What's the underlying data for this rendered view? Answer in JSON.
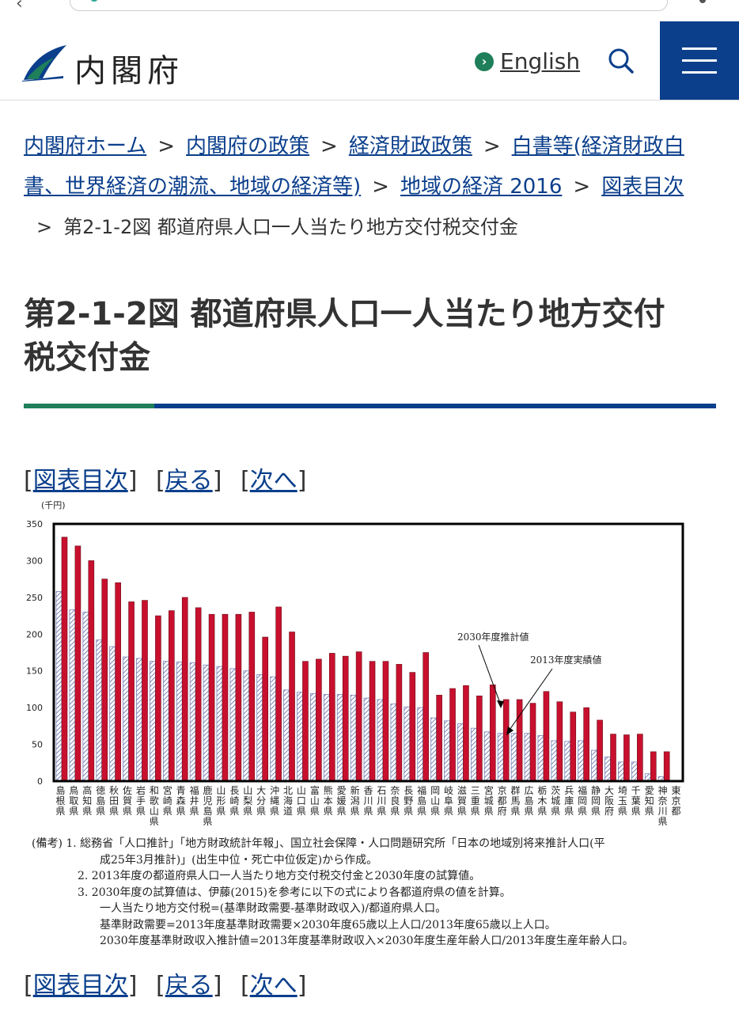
{
  "header": {
    "site_name": "内閣府",
    "english_label": "English"
  },
  "breadcrumb": {
    "items": [
      "内閣府ホーム",
      "内閣府の政策",
      "経済財政政策",
      "白書等(経済財政白書、世界経済の潮流、地域の経済等)",
      "地域の経済 2016",
      "図表目次"
    ],
    "item_lines": [
      "白書等(経済財政白",
      "書、世界経済の潮流、地域の経済等)"
    ],
    "separator": ">",
    "current": "第2-1-2図 都道府県人口一人当たり地方交付税交付金"
  },
  "page": {
    "title_line1": "第2-1-2図 都道府県人口一人当たり地方交付",
    "title_line2": "税交付金"
  },
  "nav": {
    "toc": "図表目次",
    "back": "戻る",
    "next": "次へ",
    "open": "[",
    "close": "]"
  },
  "chart_data": {
    "type": "bar",
    "unit_label": "(千円)",
    "ylim": [
      0,
      350
    ],
    "yticks": [
      0,
      50,
      100,
      150,
      200,
      250,
      300,
      350
    ],
    "categories": [
      "島根県",
      "鳥取県",
      "高知県",
      "徳島県",
      "秋田県",
      "佐賀県",
      "岩手県",
      "和歌山県",
      "宮崎県",
      "青森県",
      "福井県",
      "鹿児島県",
      "山形県",
      "長崎県",
      "山梨県",
      "大分県",
      "沖縄県",
      "北海道",
      "山口県",
      "富山県",
      "熊本県",
      "愛媛県",
      "新潟県",
      "香川県",
      "石川県",
      "奈良県",
      "長野県",
      "福島県",
      "岡山県",
      "岐阜県",
      "滋賀県",
      "三重県",
      "宮城県",
      "京都府",
      "群馬県",
      "広島県",
      "栃木県",
      "茨城県",
      "兵庫県",
      "福岡県",
      "静岡県",
      "大阪府",
      "埼玉県",
      "千葉県",
      "愛知県",
      "神奈川県",
      "東京都"
    ],
    "series": [
      {
        "name": "2030年度推計値",
        "color": "#c8102e",
        "values": [
          332,
          320,
          300,
          275,
          270,
          244,
          246,
          225,
          232,
          250,
          236,
          227,
          227,
          227,
          230,
          196,
          237,
          203,
          163,
          166,
          174,
          170,
          176,
          163,
          163,
          159,
          148,
          175,
          117,
          126,
          130,
          116,
          131,
          111,
          111,
          106,
          122,
          108,
          94,
          100,
          83,
          64,
          63,
          64,
          40,
          40,
          0
        ]
      },
      {
        "name": "2013年度実績値",
        "color": "#7a82b8",
        "values": [
          258,
          233,
          230,
          192,
          183,
          169,
          167,
          163,
          163,
          162,
          161,
          158,
          156,
          153,
          150,
          145,
          142,
          124,
          121,
          119,
          118,
          118,
          117,
          113,
          111,
          105,
          101,
          100,
          86,
          82,
          78,
          72,
          67,
          65,
          65,
          65,
          62,
          55,
          54,
          55,
          42,
          33,
          26,
          26,
          10,
          6,
          0
        ]
      }
    ],
    "annotations": [
      "2030年度推計値",
      "2013年度実績値"
    ]
  },
  "notes": {
    "lines": [
      "(備考) 1. 総務省「人口推計」「地方財政統計年報」、国立社会保障・人口問題研究所「日本の地域別将来推計人口(平",
      "成25年3月推計)」(出生中位・死亡中位仮定)から作成。",
      "2. 2013年度の都道府県人口一人当たり地方交付税交付金と2030年度の試算値。",
      "3. 2030年度の試算値は、伊藤(2015)を参考に以下の式により各都道府県の値を計算。",
      "一人当たり地方交付税=(基準財政需要-基準財政収入)/都道府県人口。",
      "基準財政需要=2013年度基準財政需要×2030年度65歳以上人口/2013年度65歳以上人口。",
      "2030年度基準財政収入推計値=2013年度基準財政収入×2030年度生産年齢人口/2013年度生産年齢人口。"
    ]
  }
}
